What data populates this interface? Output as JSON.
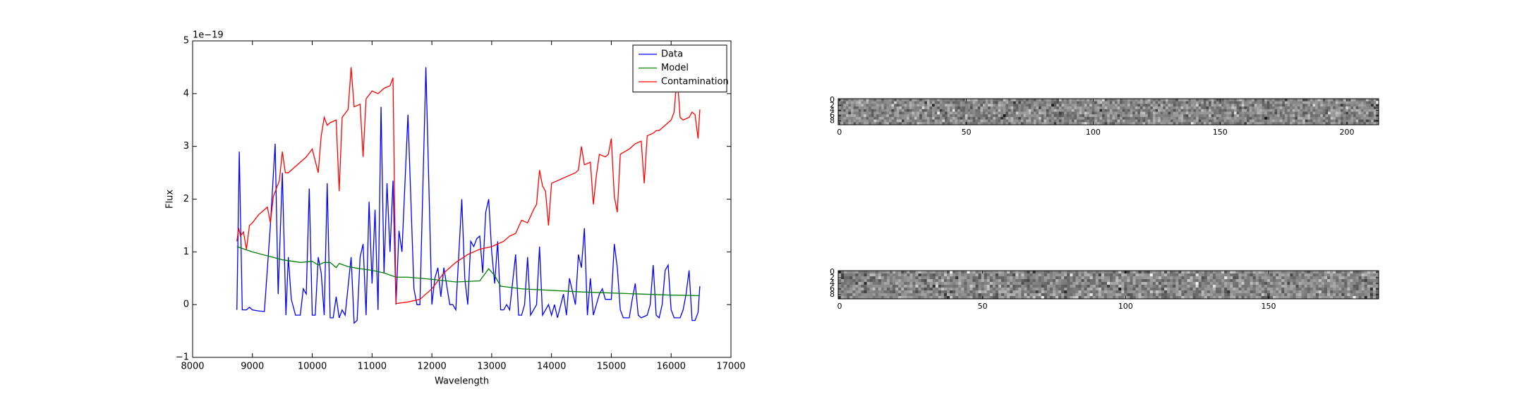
{
  "chart_data": [
    {
      "type": "line",
      "xlabel": "Wavelength",
      "ylabel": "Flux",
      "y_offset_label": "1e−19",
      "xlim": [
        8000,
        17000
      ],
      "xticks": [
        8000,
        9000,
        10000,
        11000,
        12000,
        13000,
        14000,
        15000,
        16000,
        17000
      ],
      "ylim": [
        -1,
        5
      ],
      "yticks": [
        {
          "value": -1,
          "label": "−1"
        },
        0,
        1,
        2,
        3,
        4,
        5
      ],
      "legend": "upper right",
      "series": [
        {
          "name": "Data",
          "color": "#0000ff",
          "x": [
            8740,
            8780,
            8830,
            8900,
            8950,
            9000,
            9100,
            9200,
            9300,
            9380,
            9430,
            9500,
            9560,
            9600,
            9650,
            9720,
            9800,
            9850,
            9900,
            9950,
            10000,
            10050,
            10100,
            10150,
            10200,
            10250,
            10300,
            10350,
            10400,
            10450,
            10500,
            10550,
            10650,
            10700,
            10750,
            10800,
            10850,
            10900,
            10950,
            11000,
            11050,
            11100,
            11150,
            11200,
            11250,
            11300,
            11350,
            11400,
            11450,
            11500,
            11600,
            11700,
            11750,
            11800,
            11900,
            12000,
            12050,
            12100,
            12150,
            12200,
            12300,
            12350,
            12400,
            12500,
            12550,
            12600,
            12650,
            12700,
            12750,
            12800,
            12850,
            12900,
            12950,
            13000,
            13050,
            13100,
            13150,
            13200,
            13250,
            13300,
            13400,
            13450,
            13500,
            13550,
            13600,
            13650,
            13700,
            13750,
            13800,
            13850,
            13900,
            13950,
            14000,
            14050,
            14100,
            14200,
            14250,
            14300,
            14400,
            14450,
            14500,
            14550,
            14600,
            14650,
            14700,
            14800,
            14850,
            14900,
            15000,
            15050,
            15100,
            15150,
            15200,
            15300,
            15350,
            15400,
            15450,
            15500,
            15600,
            15650,
            15700,
            15750,
            15800,
            15850,
            15900,
            15950,
            16000,
            16050,
            16150,
            16200,
            16250,
            16300,
            16350,
            16400,
            16450,
            16480
          ],
          "values": [
            -0.1,
            2.9,
            -0.1,
            -0.1,
            -0.05,
            -0.1,
            -0.12,
            -0.13,
            1.5,
            3.05,
            0.2,
            2.5,
            -0.2,
            0.9,
            0.1,
            -0.2,
            -0.2,
            0.3,
            0.2,
            2.2,
            -0.2,
            -0.2,
            0.9,
            0.6,
            -0.2,
            2.3,
            -0.25,
            -0.25,
            0.15,
            -0.25,
            -0.1,
            -0.2,
            0.9,
            -0.35,
            -0.3,
            0.9,
            1.15,
            -0.2,
            1.95,
            0.4,
            1.8,
            -0.1,
            3.75,
            0.6,
            2.3,
            1.0,
            2.35,
            0.0,
            1.4,
            1.0,
            3.6,
            0.3,
            0.0,
            0.0,
            4.5,
            0.0,
            0.5,
            0.7,
            0.15,
            0.7,
            0.0,
            0.0,
            -0.1,
            2.0,
            0.5,
            0.0,
            1.2,
            1.1,
            1.25,
            1.3,
            0.6,
            1.75,
            2.0,
            1.0,
            0.4,
            1.2,
            -0.1,
            -0.1,
            0.0,
            -0.1,
            0.95,
            -0.2,
            -0.2,
            0.0,
            0.9,
            -0.2,
            -0.1,
            0.0,
            1.1,
            -0.2,
            -0.1,
            0.0,
            -0.2,
            0.0,
            -0.25,
            0.2,
            -0.2,
            0.5,
            0.0,
            0.95,
            0.7,
            1.45,
            -0.2,
            0.5,
            -0.2,
            0.2,
            0.3,
            0.1,
            0.1,
            1.15,
            0.7,
            -0.1,
            -0.25,
            -0.25,
            0.1,
            0.4,
            -0.2,
            -0.25,
            -0.2,
            0.0,
            0.75,
            -0.2,
            -0.25,
            0.0,
            0.65,
            0.75,
            -0.1,
            -0.25,
            -0.25,
            -0.1,
            0.2,
            0.65,
            -0.3,
            -0.3,
            -0.15,
            0.35
          ]
        },
        {
          "name": "Model",
          "color": "#008000",
          "x": [
            8740,
            9000,
            9500,
            9800,
            10000,
            10100,
            10200,
            10300,
            10400,
            10450,
            10600,
            10800,
            11000,
            11200,
            11400,
            11600,
            12000,
            12400,
            12800,
            12950,
            13050,
            13150,
            13500,
            14000,
            14500,
            15000,
            15500,
            16000,
            16480
          ],
          "values": [
            1.1,
            1.0,
            0.85,
            0.8,
            0.82,
            0.75,
            0.8,
            0.8,
            0.7,
            0.78,
            0.72,
            0.68,
            0.65,
            0.6,
            0.52,
            0.52,
            0.48,
            0.43,
            0.45,
            0.68,
            0.55,
            0.35,
            0.3,
            0.27,
            0.24,
            0.22,
            0.2,
            0.18,
            0.17
          ]
        },
        {
          "name": "Contamination",
          "color": "#ff0000",
          "x": [
            8740,
            8770,
            8800,
            8850,
            8900,
            8950,
            9000,
            9100,
            9200,
            9250,
            9300,
            9350,
            9400,
            9450,
            9500,
            9550,
            9600,
            9700,
            9800,
            9900,
            10000,
            10100,
            10150,
            10200,
            10250,
            10300,
            10400,
            10450,
            10500,
            10600,
            10650,
            10700,
            10800,
            10850,
            10900,
            11000,
            11100,
            11200,
            11300,
            11350,
            11400,
            11600,
            11800,
            12000,
            12200,
            12400,
            12600,
            12800,
            13000,
            13200,
            13300,
            13400,
            13500,
            13600,
            13700,
            13750,
            13800,
            13850,
            13900,
            13950,
            14000,
            14100,
            14200,
            14300,
            14400,
            14450,
            14500,
            14550,
            14650,
            14700,
            14750,
            14800,
            14900,
            14950,
            15000,
            15050,
            15100,
            15150,
            15300,
            15400,
            15500,
            15550,
            15600,
            15700,
            15750,
            15800,
            15900,
            16000,
            16050,
            16100,
            16150,
            16200,
            16300,
            16350,
            16400,
            16450,
            16480
          ],
          "values": [
            1.2,
            1.45,
            1.3,
            1.38,
            1.05,
            1.5,
            1.55,
            1.7,
            1.8,
            1.85,
            1.55,
            2.05,
            2.2,
            2.35,
            2.9,
            2.5,
            2.5,
            2.6,
            2.7,
            2.8,
            2.95,
            2.5,
            3.2,
            3.55,
            3.4,
            3.45,
            3.5,
            2.15,
            3.55,
            3.7,
            4.5,
            3.75,
            3.8,
            2.8,
            3.9,
            4.05,
            4.0,
            4.1,
            4.15,
            4.3,
            0.02,
            0.05,
            0.1,
            0.3,
            0.6,
            0.8,
            0.95,
            1.05,
            1.1,
            1.2,
            1.3,
            1.35,
            1.6,
            1.55,
            1.8,
            1.9,
            2.55,
            2.25,
            2.15,
            1.5,
            2.3,
            2.35,
            2.4,
            2.45,
            2.5,
            2.55,
            3.0,
            2.65,
            2.7,
            1.9,
            2.45,
            2.85,
            2.8,
            2.85,
            3.15,
            2.05,
            1.75,
            2.85,
            2.95,
            3.05,
            3.1,
            2.3,
            3.2,
            3.25,
            3.3,
            3.3,
            3.4,
            3.5,
            3.65,
            4.35,
            3.55,
            3.5,
            3.55,
            3.65,
            3.6,
            3.15,
            3.7
          ]
        }
      ]
    },
    {
      "type": "image",
      "colormap": "gray",
      "xlim": [
        -0.5,
        212.5
      ],
      "xticks": [
        0,
        50,
        100,
        150,
        200
      ],
      "ylim": [
        9.5,
        -0.5
      ],
      "yticks": [
        0,
        2,
        4,
        6,
        8
      ]
    },
    {
      "type": "image",
      "colormap": "gray",
      "xlim": [
        -0.5,
        188.5
      ],
      "xticks": [
        0,
        50,
        100,
        150
      ],
      "ylim": [
        9.5,
        -0.5
      ],
      "yticks": [
        0,
        2,
        4,
        6,
        8
      ]
    }
  ]
}
